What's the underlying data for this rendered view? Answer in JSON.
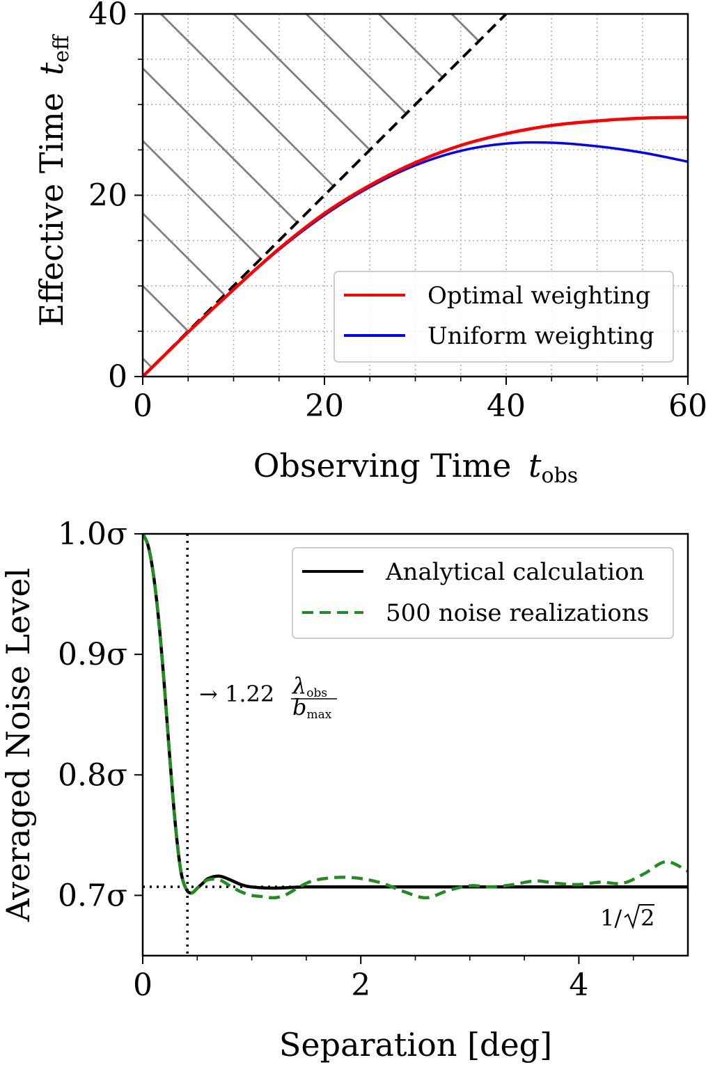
{
  "chart_data": [
    {
      "type": "line",
      "xlabel": "Observing Time",
      "xlabel_sub": "obs",
      "ylabel": "Effective Time",
      "ylabel_sub": "eff",
      "xlim": [
        0,
        60
      ],
      "ylim": [
        0,
        40
      ],
      "xticks": [
        0,
        20,
        40,
        60
      ],
      "yticks": [
        0,
        20,
        40
      ],
      "minor_x": [
        5,
        10,
        15,
        25,
        30,
        35,
        45,
        50,
        55
      ],
      "minor_y": [
        5,
        10,
        15,
        25,
        30,
        35
      ],
      "grid": true,
      "hatched_region": "above y = x",
      "reference_line": {
        "style": "dashed",
        "color": "#000000",
        "x": [
          0,
          40
        ],
        "y": [
          0,
          40
        ]
      },
      "legend_position": "lower-right",
      "series": [
        {
          "name": "Optimal weighting",
          "color": "#ff0000",
          "x": [
            0,
            5,
            10,
            15,
            20,
            25,
            30,
            35,
            40,
            45,
            50,
            55,
            60
          ],
          "y": [
            0,
            4.9,
            9.6,
            14.1,
            18.0,
            21.1,
            23.6,
            25.5,
            26.8,
            27.7,
            28.2,
            28.5,
            28.6
          ]
        },
        {
          "name": "Uniform weighting",
          "color": "#0000ff",
          "x": [
            0,
            5,
            10,
            15,
            20,
            25,
            30,
            35,
            40,
            45,
            50,
            55,
            60
          ],
          "y": [
            0,
            4.9,
            9.6,
            14.0,
            17.8,
            20.9,
            23.3,
            24.9,
            25.7,
            25.8,
            25.4,
            24.7,
            23.7
          ]
        }
      ]
    },
    {
      "type": "line",
      "xlabel": "Separation [deg]",
      "ylabel": "Averaged Noise Level",
      "xlim": [
        0,
        5
      ],
      "ylim": [
        0.65,
        1.0
      ],
      "xticks": [
        0,
        2,
        4
      ],
      "xtick_labels": [
        "0",
        "2",
        "4"
      ],
      "yticks": [
        0.7,
        0.8,
        0.9,
        1.0
      ],
      "ytick_labels": [
        "0.7σ",
        "0.8σ",
        "0.9σ",
        "1.0σ"
      ],
      "minor_x": [
        0.5,
        1,
        1.5,
        2.5,
        3,
        3.5,
        4.5
      ],
      "grid": false,
      "legend_position": "top-right",
      "vline": {
        "x": 0.41,
        "label": "→ 1.22",
        "frac_num": "λ",
        "frac_num_sub": "obs",
        "frac_den": "b",
        "frac_den_sub": "max"
      },
      "hline": {
        "y": 0.7071,
        "label": "1/",
        "label_root": "2"
      },
      "series": [
        {
          "name": "Analytical calculation",
          "color": "#000000",
          "style": "solid",
          "x": [
            0,
            0.05,
            0.1,
            0.15,
            0.2,
            0.25,
            0.3,
            0.35,
            0.4,
            0.45,
            0.5,
            0.55,
            0.6,
            0.7,
            0.8,
            0.9,
            1.0,
            1.2,
            1.5,
            2.0,
            2.5,
            3.0,
            3.5,
            4.0,
            4.5,
            5.0
          ],
          "y": [
            1.0,
            0.99,
            0.965,
            0.925,
            0.872,
            0.812,
            0.758,
            0.72,
            0.705,
            0.702,
            0.706,
            0.71,
            0.714,
            0.716,
            0.713,
            0.709,
            0.707,
            0.706,
            0.707,
            0.707,
            0.707,
            0.707,
            0.707,
            0.707,
            0.707,
            0.707
          ]
        },
        {
          "name": "500 noise realizations",
          "color": "#228b22",
          "style": "dashed",
          "x": [
            0,
            0.05,
            0.1,
            0.15,
            0.2,
            0.25,
            0.3,
            0.35,
            0.4,
            0.45,
            0.5,
            0.55,
            0.6,
            0.7,
            0.8,
            0.9,
            1.0,
            1.1,
            1.2,
            1.3,
            1.4,
            1.5,
            1.6,
            1.8,
            2.0,
            2.2,
            2.4,
            2.6,
            2.8,
            3.0,
            3.2,
            3.4,
            3.6,
            3.8,
            4.0,
            4.2,
            4.4,
            4.6,
            4.8,
            5.0
          ],
          "y": [
            1.0,
            0.99,
            0.965,
            0.925,
            0.872,
            0.812,
            0.758,
            0.72,
            0.705,
            0.702,
            0.706,
            0.71,
            0.713,
            0.713,
            0.708,
            0.703,
            0.7,
            0.699,
            0.698,
            0.7,
            0.705,
            0.71,
            0.713,
            0.715,
            0.714,
            0.71,
            0.703,
            0.698,
            0.704,
            0.708,
            0.707,
            0.709,
            0.712,
            0.71,
            0.709,
            0.711,
            0.71,
            0.718,
            0.728,
            0.72
          ]
        }
      ]
    }
  ]
}
